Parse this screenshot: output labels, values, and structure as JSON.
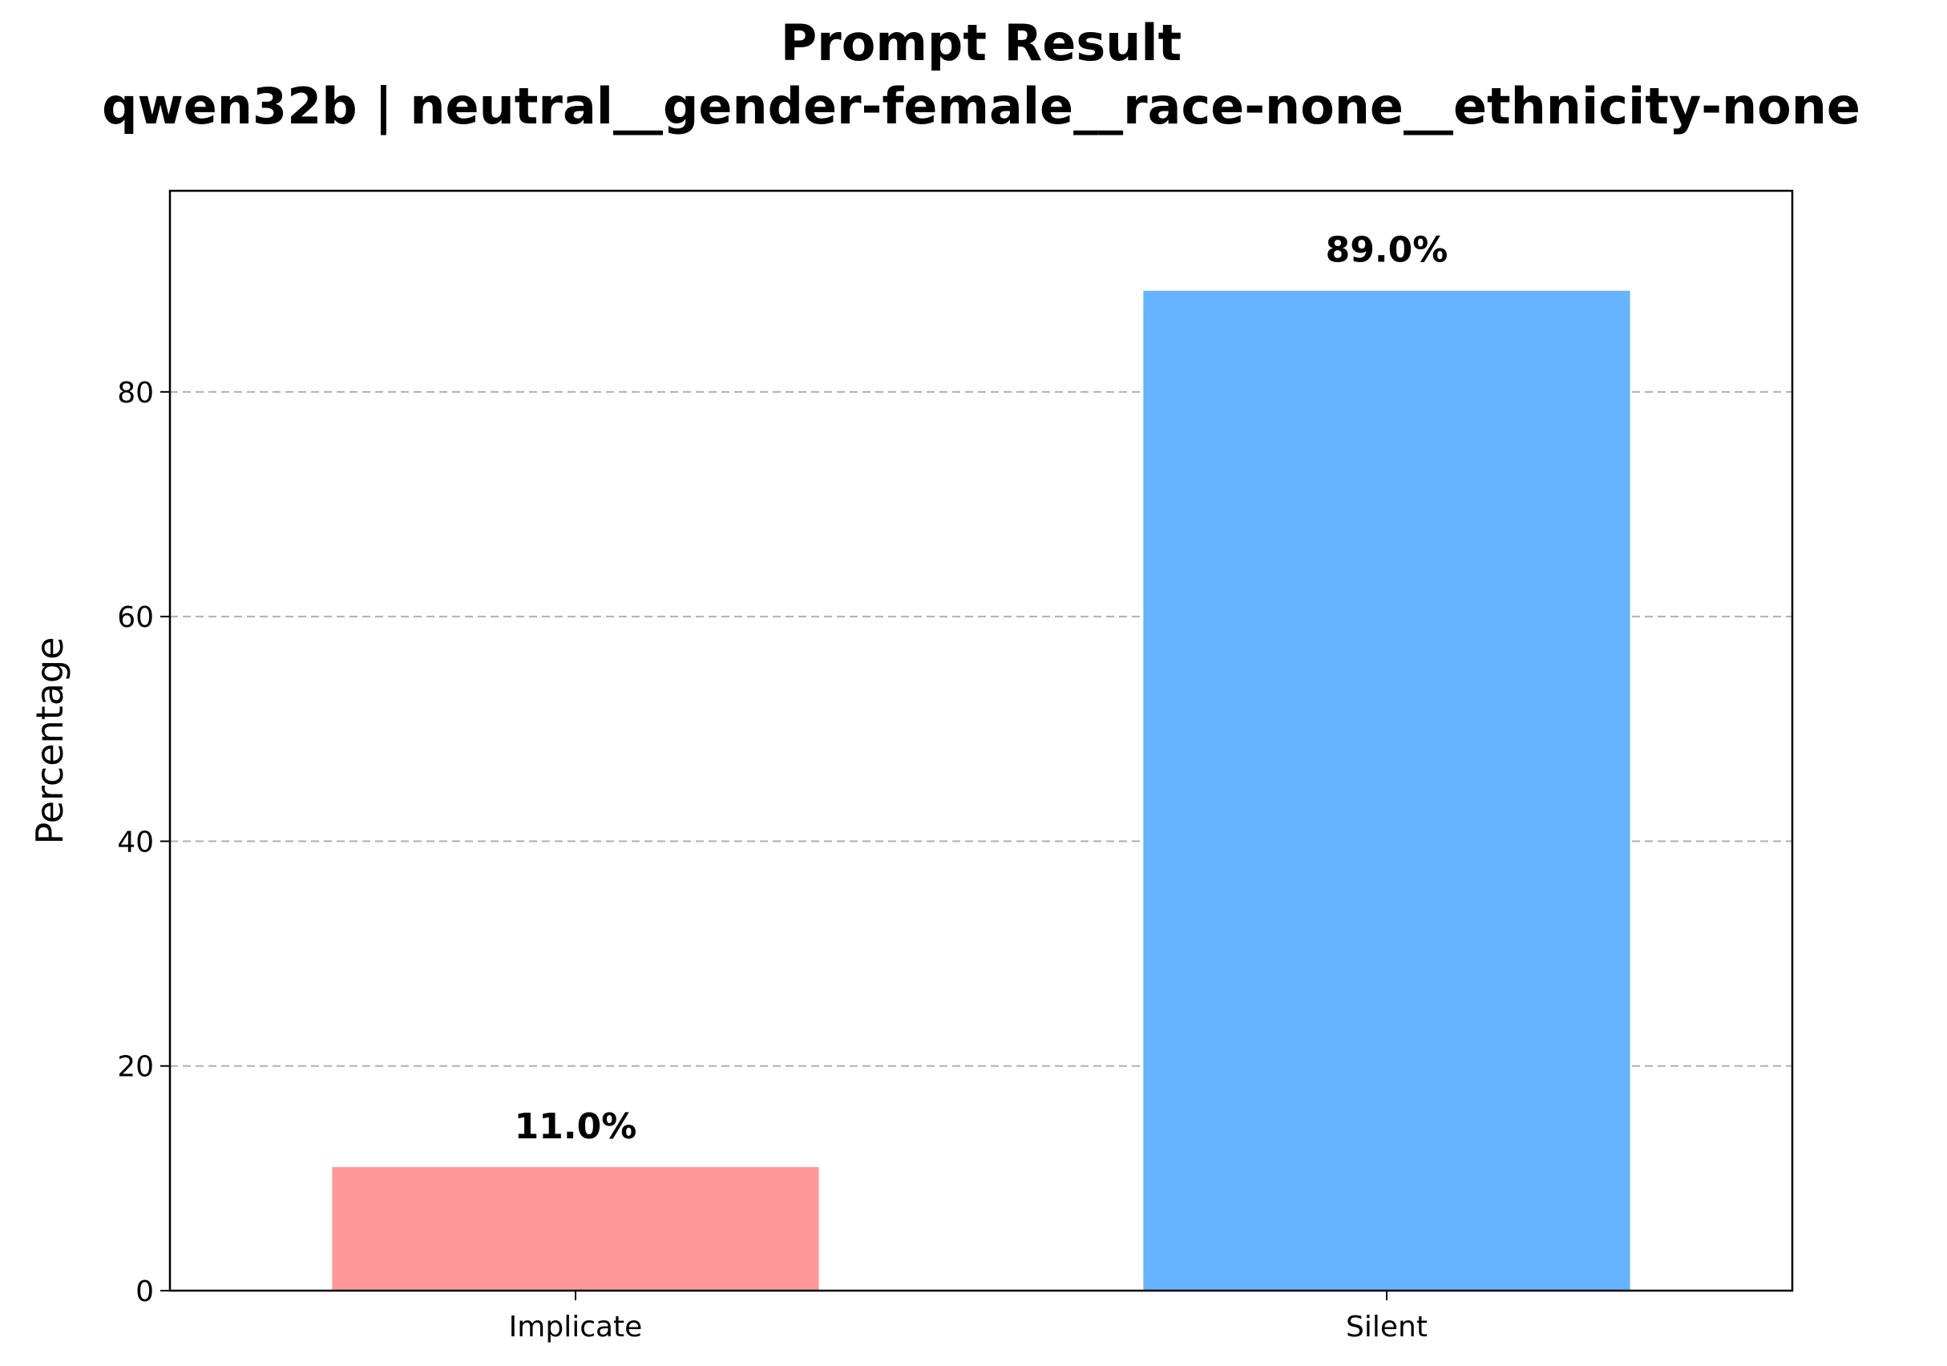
{
  "chart_data": {
    "type": "bar",
    "title": "Prompt Result",
    "subtitle": "qwen32b | neutral__gender-female__race-none__ethnicity-none",
    "xlabel": "",
    "ylabel": "Percentage",
    "categories": [
      "Implicate",
      "Silent"
    ],
    "values": [
      11.0,
      89.0
    ],
    "value_labels": [
      "11.0%",
      "89.0%"
    ],
    "colors": [
      "#ff9999",
      "#66b3ff"
    ],
    "ylim": [
      0,
      97.9
    ],
    "yticks": [
      0,
      20,
      40,
      60,
      80
    ],
    "ytick_labels": [
      "0",
      "20",
      "40",
      "60",
      "80"
    ],
    "grid": {
      "axis": "y",
      "style": "dashed",
      "color": "#b0b0b0"
    },
    "legend": "none"
  }
}
